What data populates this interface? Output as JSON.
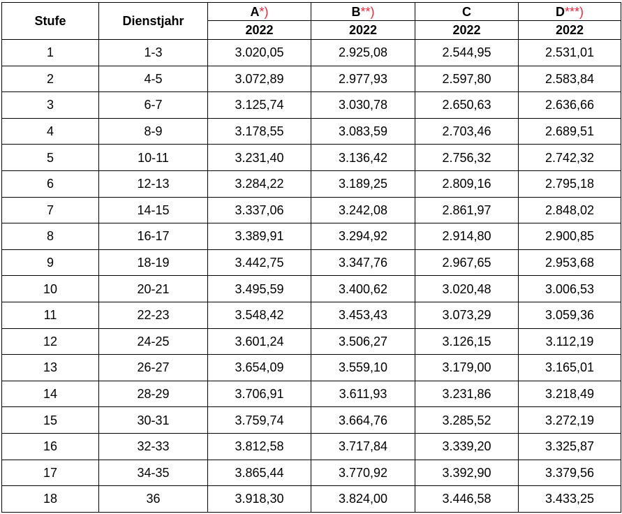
{
  "header": {
    "stufe": "Stufe",
    "dienstjahr": "Dienstjahr",
    "groups": [
      {
        "letter": "A",
        "mark": "*)",
        "year": "2022"
      },
      {
        "letter": "B",
        "mark": "**)",
        "year": "2022"
      },
      {
        "letter": "C",
        "mark": "",
        "year": "2022"
      },
      {
        "letter": "D",
        "mark": "***)",
        "year": "2022"
      }
    ]
  },
  "colors": {
    "footnote_mark": "#e8283c",
    "border": "#000000",
    "text": "#000000"
  },
  "rows": [
    {
      "stufe": "1",
      "dienstjahr": "1-3",
      "a": "3.020,05",
      "b": "2.925,08",
      "c": "2.544,95",
      "d": "2.531,01"
    },
    {
      "stufe": "2",
      "dienstjahr": "4-5",
      "a": "3.072,89",
      "b": "2.977,93",
      "c": "2.597,80",
      "d": "2.583,84"
    },
    {
      "stufe": "3",
      "dienstjahr": "6-7",
      "a": "3.125,74",
      "b": "3.030,78",
      "c": "2.650,63",
      "d": "2.636,66"
    },
    {
      "stufe": "4",
      "dienstjahr": "8-9",
      "a": "3.178,55",
      "b": "3.083,59",
      "c": "2.703,46",
      "d": "2.689,51"
    },
    {
      "stufe": "5",
      "dienstjahr": "10-11",
      "a": "3.231,40",
      "b": "3.136,42",
      "c": "2.756,32",
      "d": "2.742,32"
    },
    {
      "stufe": "6",
      "dienstjahr": "12-13",
      "a": "3.284,22",
      "b": "3.189,25",
      "c": "2.809,16",
      "d": "2.795,18"
    },
    {
      "stufe": "7",
      "dienstjahr": "14-15",
      "a": "3.337,06",
      "b": "3.242,08",
      "c": "2.861,97",
      "d": "2.848,02"
    },
    {
      "stufe": "8",
      "dienstjahr": "16-17",
      "a": "3.389,91",
      "b": "3.294,92",
      "c": "2.914,80",
      "d": "2.900,85"
    },
    {
      "stufe": "9",
      "dienstjahr": "18-19",
      "a": "3.442,75",
      "b": "3.347,76",
      "c": "2.967,65",
      "d": "2.953,68"
    },
    {
      "stufe": "10",
      "dienstjahr": "20-21",
      "a": "3.495,59",
      "b": "3.400,62",
      "c": "3.020,48",
      "d": "3.006,53"
    },
    {
      "stufe": "11",
      "dienstjahr": "22-23",
      "a": "3.548,42",
      "b": "3.453,43",
      "c": "3.073,29",
      "d": "3.059,36"
    },
    {
      "stufe": "12",
      "dienstjahr": "24-25",
      "a": "3.601,24",
      "b": "3.506,27",
      "c": "3.126,15",
      "d": "3.112,19"
    },
    {
      "stufe": "13",
      "dienstjahr": "26-27",
      "a": "3.654,09",
      "b": "3.559,10",
      "c": "3.179,00",
      "d": "3.165,01"
    },
    {
      "stufe": "14",
      "dienstjahr": "28-29",
      "a": "3.706,91",
      "b": "3.611,93",
      "c": "3.231,86",
      "d": "3.218,49"
    },
    {
      "stufe": "15",
      "dienstjahr": "30-31",
      "a": "3.759,74",
      "b": "3.664,76",
      "c": "3.285,52",
      "d": "3.272,19"
    },
    {
      "stufe": "16",
      "dienstjahr": "32-33",
      "a": "3.812,58",
      "b": "3.717,84",
      "c": "3.339,20",
      "d": "3.325,87"
    },
    {
      "stufe": "17",
      "dienstjahr": "34-35",
      "a": "3.865,44",
      "b": "3.770,92",
      "c": "3.392,90",
      "d": "3.379,56"
    },
    {
      "stufe": "18",
      "dienstjahr": "36",
      "a": "3.918,30",
      "b": "3.824,00",
      "c": "3.446,58",
      "d": "3.433,25"
    }
  ]
}
